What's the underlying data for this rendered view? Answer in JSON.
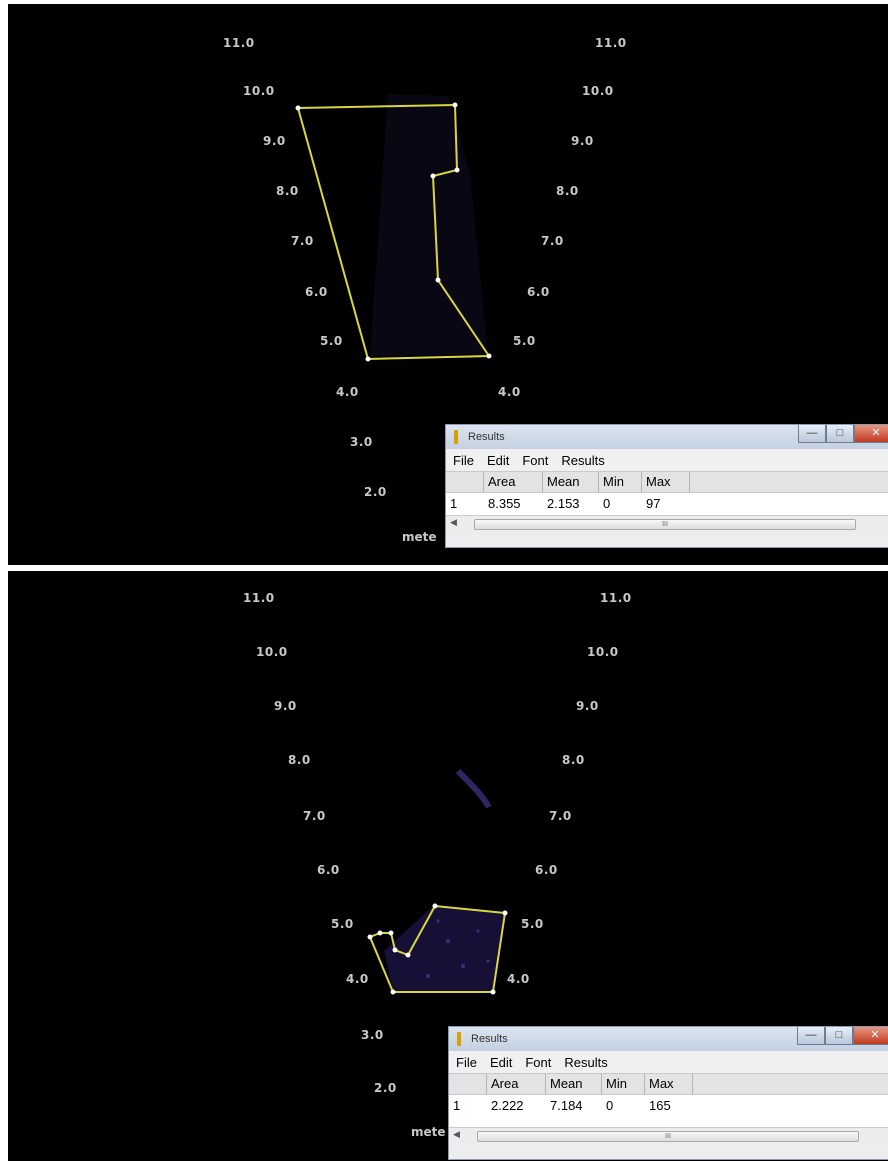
{
  "panels": [
    {
      "left_ticks": [
        "11.0",
        "10.0",
        "9.0",
        "8.0",
        "7.0",
        "6.0",
        "5.0",
        "4.0",
        "3.0",
        "2.0"
      ],
      "right_ticks": [
        "11.0",
        "10.0",
        "9.0",
        "8.0",
        "7.0",
        "6.0",
        "5.0",
        "4.0"
      ],
      "unit_label": "mete",
      "roi_color": "#d9d640",
      "results": {
        "title": "Results",
        "menu": [
          "File",
          "Edit",
          "Font",
          "Results"
        ],
        "headers": [
          "",
          "Area",
          "Mean",
          "Min",
          "Max"
        ],
        "row": [
          "1",
          "8.355",
          "2.153",
          "0",
          "97"
        ],
        "scroll_thumb": "III"
      }
    },
    {
      "left_ticks": [
        "11.0",
        "10.0",
        "9.0",
        "8.0",
        "7.0",
        "6.0",
        "5.0",
        "4.0",
        "3.0",
        "2.0"
      ],
      "right_ticks": [
        "11.0",
        "10.0",
        "9.0",
        "8.0",
        "7.0",
        "6.0",
        "5.0",
        "4.0"
      ],
      "unit_label": "mete",
      "roi_color": "#d9d640",
      "results": {
        "title": "Results",
        "menu": [
          "File",
          "Edit",
          "Font",
          "Results"
        ],
        "headers": [
          "",
          "Area",
          "Mean",
          "Min",
          "Max"
        ],
        "row": [
          "1",
          "2.222",
          "7.184",
          "0",
          "165"
        ],
        "scroll_thumb": "III"
      }
    }
  ]
}
